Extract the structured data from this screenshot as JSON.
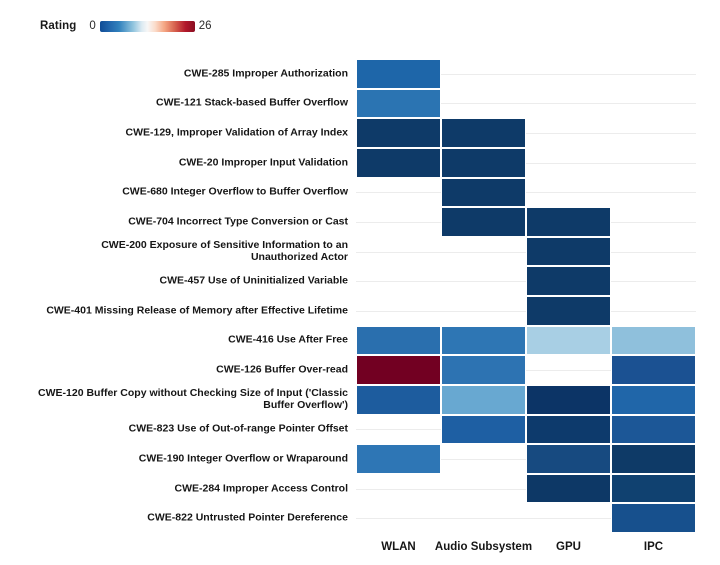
{
  "legend": {
    "title": "Rating",
    "min": "0",
    "max": "26"
  },
  "chart_data": {
    "type": "heatmap",
    "title": "",
    "legend": {
      "title": "Rating",
      "position": "top-left",
      "min": 0,
      "max": 26,
      "colorscale": "blue-white-red (RdBu reversed)"
    },
    "columns": [
      "WLAN",
      "Audio Subsystem",
      "GPU",
      "IPC"
    ],
    "rows": [
      "CWE-285 Improper Authorization",
      "CWE-121 Stack-based Buffer Overflow",
      "CWE-129, Improper Validation of Array Index",
      "CWE-20 Improper Input Validation",
      "CWE-680 Integer Overflow to Buffer Overflow",
      "CWE-704 Incorrect Type Conversion or Cast",
      "CWE-200 Exposure of Sensitive Information to an Unauthorized Actor",
      "CWE-457 Use of Uninitialized Variable",
      "CWE-401 Missing Release of Memory after Effective Lifetime",
      "CWE-416 Use After Free",
      "CWE-126 Buffer Over-read",
      "CWE-120 Buffer Copy without Checking Size of Input ('Classic Buffer Overflow')",
      "CWE-823 Use of Out-of-range Pointer Offset",
      "CWE-190 Integer Overflow or Wraparound",
      "CWE-284 Improper Access Control",
      "CWE-822 Untrusted Pointer Dereference"
    ],
    "values": [
      [
        4,
        null,
        null,
        null
      ],
      [
        5,
        null,
        null,
        null
      ],
      [
        1,
        1,
        null,
        null
      ],
      [
        1,
        1,
        null,
        null
      ],
      [
        null,
        1,
        null,
        null
      ],
      [
        null,
        1,
        1,
        null
      ],
      [
        null,
        null,
        1,
        null
      ],
      [
        null,
        null,
        1,
        null
      ],
      [
        null,
        null,
        1,
        null
      ],
      [
        4,
        5,
        10,
        9
      ],
      [
        26,
        5,
        null,
        3
      ],
      [
        3,
        8,
        1,
        4
      ],
      [
        null,
        3,
        1,
        3
      ],
      [
        5,
        null,
        2,
        1
      ],
      [
        null,
        null,
        1,
        1
      ],
      [
        null,
        null,
        null,
        3
      ]
    ],
    "cell_colors": [
      [
        "#1e66a9",
        null,
        null,
        null
      ],
      [
        "#2b74b2",
        null,
        null,
        null
      ],
      [
        "#0e3a68",
        "#0e3a68",
        null,
        null
      ],
      [
        "#0e3a68",
        "#0e3a68",
        null,
        null
      ],
      [
        null,
        "#0e3a68",
        null,
        null
      ],
      [
        null,
        "#0e3a68",
        "#0e3a68",
        null
      ],
      [
        null,
        null,
        "#0e3a68",
        null
      ],
      [
        null,
        null,
        "#0e3a68",
        null
      ],
      [
        null,
        null,
        "#0e3a68",
        null
      ],
      [
        "#2a6fae",
        "#2e76b4",
        "#a8cfe4",
        "#8fc0dc"
      ],
      [
        "#720022",
        "#2d73b2",
        null,
        "#1b5192"
      ],
      [
        "#1d5c9e",
        "#68a8d1",
        "#0c3466",
        "#2066a9"
      ],
      [
        null,
        "#1e5fa3",
        "#0d3a6c",
        "#1c5797"
      ],
      [
        "#2e76b5",
        null,
        "#174a80",
        "#0e3a67"
      ],
      [
        null,
        null,
        "#0d3866",
        "#104170"
      ],
      [
        null,
        null,
        null,
        "#17508d"
      ]
    ],
    "grid": true,
    "gridline_color": "#ececec",
    "xlabel": "",
    "ylabel": ""
  }
}
